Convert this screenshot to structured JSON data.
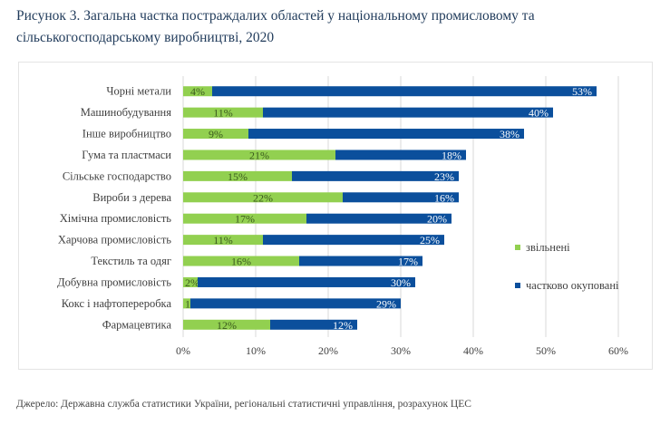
{
  "title": "Рисунок 3. Загальна частка постраждалих областей у національному промисловому та сільськогосподарському виробництві, 2020",
  "source": "Джерело: Державна служба статистики України, регіональні статистичні управління, розрахунок ЦЕС",
  "chart_data": {
    "type": "bar",
    "orientation": "horizontal",
    "stacked": true,
    "categories": [
      "Чорні метали",
      "Машинобудування",
      "Інше виробництво",
      "Гума та пластмаси",
      "Сільське господарство",
      "Вироби з дерева",
      "Хімічна промисловість",
      "Харчова промисловість",
      "Текстиль та одяг",
      "Добувна промисловість",
      "Кокс і нафтопереробка",
      "Фармацевтика"
    ],
    "series": [
      {
        "name": "звільнені",
        "color": "#92d050",
        "values": [
          4,
          11,
          9,
          21,
          15,
          22,
          17,
          11,
          16,
          2,
          1,
          12
        ]
      },
      {
        "name": "частково окуповані",
        "color": "#0b4f9c",
        "values": [
          53,
          40,
          38,
          18,
          23,
          16,
          20,
          25,
          17,
          30,
          29,
          12
        ]
      }
    ],
    "xlim": [
      0,
      60
    ],
    "xticks": [
      "0%",
      "10%",
      "20%",
      "30%",
      "40%",
      "50%",
      "60%"
    ],
    "grid": true,
    "legend": "right"
  }
}
